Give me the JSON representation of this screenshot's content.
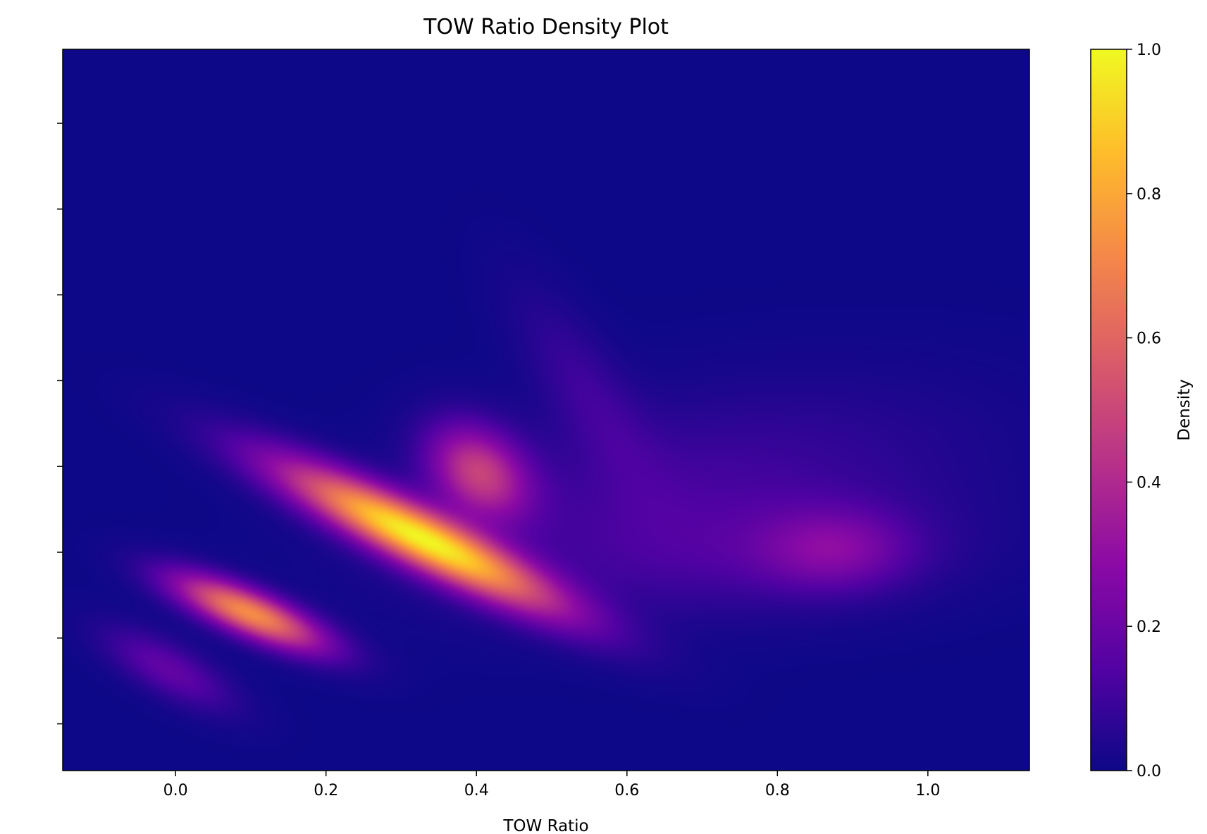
{
  "chart_data": {
    "type": "heatmap",
    "title": "TOW Ratio Density Plot",
    "xlabel": "TOW Ratio",
    "ylabel": "",
    "xlim": [
      -0.15,
      1.135
    ],
    "x_ticks": [
      0.0,
      0.2,
      0.4,
      0.6,
      0.8,
      1.0
    ],
    "x_tick_labels": [
      "0.0",
      "0.2",
      "0.4",
      "0.6",
      "0.8",
      "1.0"
    ],
    "y_ticks_count": 8,
    "y_tick_labels_visible": false,
    "grid": false,
    "colormap": "plasma",
    "colorbar": {
      "label": "Density",
      "range": [
        0.0,
        1.0
      ],
      "ticks": [
        0.0,
        0.2,
        0.4,
        0.6,
        0.8,
        1.0
      ],
      "tick_labels": [
        "0.0",
        "0.2",
        "0.4",
        "0.6",
        "0.8",
        "1.0"
      ]
    },
    "density_regions": [
      {
        "name": "main ridge peak",
        "x": 0.32,
        "y_frac": 0.28,
        "density": 1.0
      },
      {
        "name": "ridge lower end",
        "x": 0.12,
        "y_frac": 0.16,
        "density": 0.8
      },
      {
        "name": "ridge upper shoulder",
        "x": 0.5,
        "y_frac": 0.4,
        "density": 0.35
      },
      {
        "name": "upper faint lobe",
        "x": 0.64,
        "y_frac": 0.58,
        "density": 0.08
      },
      {
        "name": "right secondary peak",
        "x": 0.92,
        "y_frac": 0.23,
        "density": 0.22
      },
      {
        "name": "lower-left tail",
        "x": -0.05,
        "y_frac": 0.07,
        "density": 0.1
      }
    ]
  },
  "colors": {
    "background": "#0d0887",
    "colormap_stops": [
      "#0d0887",
      "#5302a3",
      "#8b0aa5",
      "#b83289",
      "#db5c68",
      "#f48849",
      "#febd2a",
      "#f0f921"
    ]
  }
}
